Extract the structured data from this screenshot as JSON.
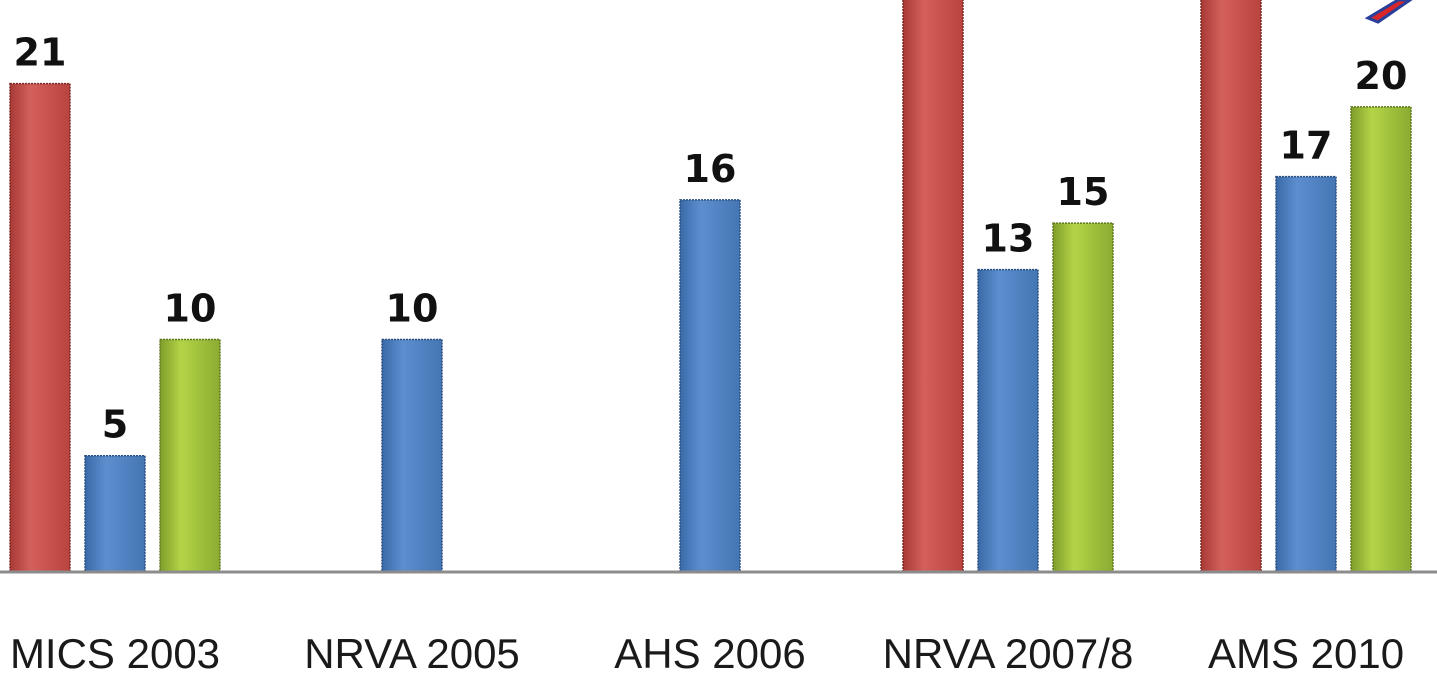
{
  "chart_data": {
    "type": "bar",
    "categories": [
      "MICS 2003",
      "NRVA 2005",
      "AHS 2006",
      "NRVA 2007/8",
      "AMS 2010"
    ],
    "series": [
      {
        "values": [
          21,
          null,
          null,
          null,
          null
        ],
        "color": "#c0504d"
      },
      {
        "values": [
          5,
          10,
          16,
          13,
          17
        ],
        "color": "#4f81bd"
      },
      {
        "values": [
          10,
          null,
          null,
          15,
          20
        ],
        "color": "#9bbb59"
      }
    ],
    "hidden_series_bars": {
      "series_index": 0,
      "categories": [
        "NRVA 2007/8",
        "AMS 2010"
      ],
      "note": "bars extend past the top of the visible area; value labels not shown"
    },
    "ylim": [
      0,
      21.5
    ],
    "grid": false
  }
}
